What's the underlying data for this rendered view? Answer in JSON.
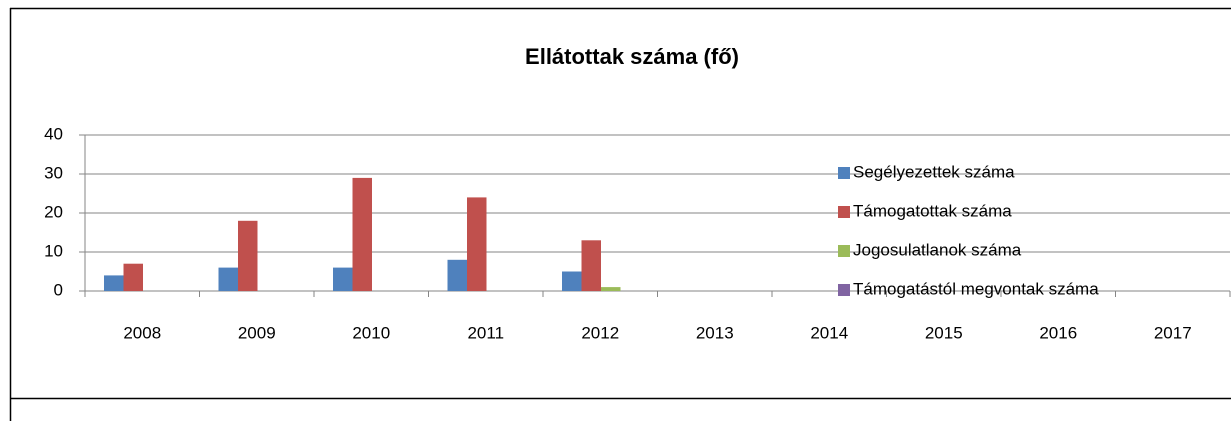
{
  "chart_data": {
    "type": "bar",
    "title": "Ellátottak száma (fő)",
    "categories": [
      "2008",
      "2009",
      "2010",
      "2011",
      "2012",
      "2013",
      "2014",
      "2015",
      "2016",
      "2017"
    ],
    "series": [
      {
        "name": "Segélyezettek száma",
        "color": "#4f81bd",
        "values": [
          4,
          6,
          6,
          8,
          5,
          null,
          null,
          null,
          null,
          null
        ]
      },
      {
        "name": "Támogatottak száma",
        "color": "#c0504d",
        "values": [
          7,
          18,
          29,
          24,
          13,
          null,
          null,
          null,
          null,
          null
        ]
      },
      {
        "name": "Jogosulatlanok száma",
        "color": "#9bbb59",
        "values": [
          0,
          0,
          0,
          0,
          1,
          null,
          null,
          null,
          null,
          null
        ]
      },
      {
        "name": "Támogatástól megvontak száma",
        "color": "#8064a2",
        "values": [
          0,
          0,
          0,
          0,
          0,
          null,
          null,
          null,
          null,
          null
        ]
      }
    ],
    "ylim": [
      0,
      40
    ],
    "yticks": [
      0,
      10,
      20,
      30,
      40
    ],
    "grid": true,
    "legend": "right"
  }
}
